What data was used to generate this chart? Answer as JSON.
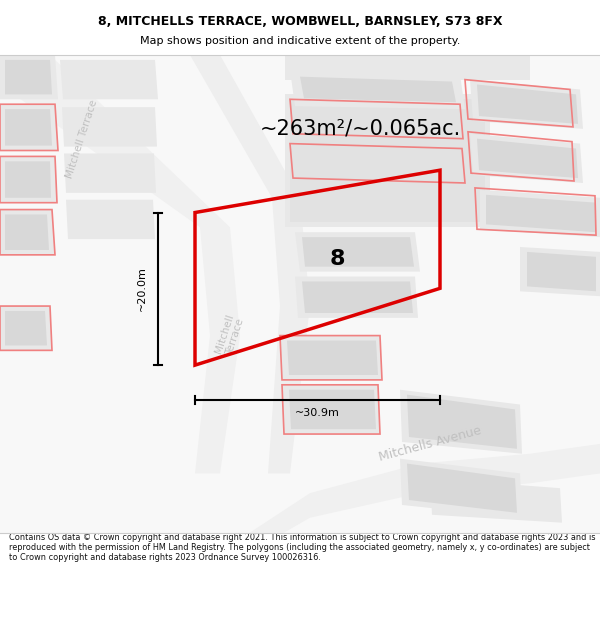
{
  "title_line1": "8, MITCHELLS TERRACE, WOMBWELL, BARNSLEY, S73 8FX",
  "title_line2": "Map shows position and indicative extent of the property.",
  "area_text": "~263m²/~0.065ac.",
  "label_number": "8",
  "dim_height": "~20.0m",
  "dim_width": "~30.9m",
  "footer_text": "Contains OS data © Crown copyright and database right 2021. This information is subject to Crown copyright and database rights 2023 and is reproduced with the permission of HM Land Registry. The polygons (including the associated geometry, namely x, y co-ordinates) are subject to Crown copyright and database rights 2023 Ordnance Survey 100026316.",
  "map_bg": "#f8f8f8",
  "road_color": "#ffffff",
  "building_fill": "#e8e8e8",
  "building_inner": "#d8d8d8",
  "pink_edge": "#f08080",
  "red_outline": "#dd0000",
  "dim_color": "#111111",
  "road_label_color": "#bbbbbb",
  "title_color": "#000000",
  "footer_color": "#111111"
}
